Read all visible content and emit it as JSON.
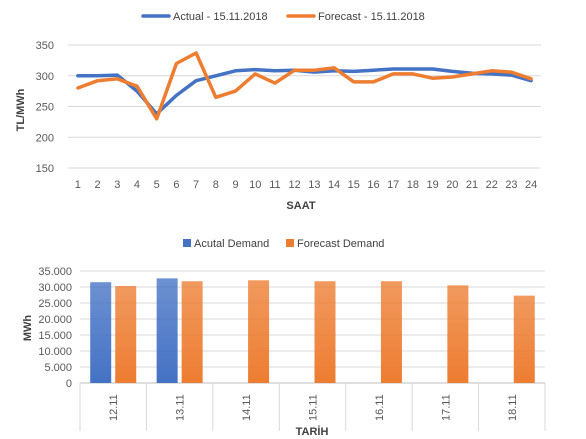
{
  "chart_data": [
    {
      "type": "line",
      "xlabel": "SAAT",
      "ylabel": "TL/MWh",
      "ylim": [
        150,
        350
      ],
      "yticks": [
        150,
        200,
        250,
        300,
        350
      ],
      "grid": true,
      "legend": "top-center",
      "categories": [
        "1",
        "2",
        "3",
        "4",
        "5",
        "6",
        "7",
        "8",
        "9",
        "10",
        "11",
        "12",
        "13",
        "14",
        "15",
        "16",
        "17",
        "18",
        "19",
        "20",
        "21",
        "22",
        "23",
        "24"
      ],
      "series": [
        {
          "name": "Actual - 15.11.2018",
          "color": "#4472C4",
          "values": [
            300,
            300,
            301,
            275,
            238,
            268,
            292,
            300,
            308,
            310,
            308,
            309,
            306,
            308,
            307,
            309,
            311,
            311,
            311,
            307,
            304,
            303,
            301,
            292
          ]
        },
        {
          "name": "Forecast - 15.11.2018",
          "color": "#ED7D31",
          "values": [
            280,
            292,
            295,
            283,
            230,
            320,
            337,
            265,
            275,
            303,
            288,
            309,
            309,
            313,
            290,
            290,
            303,
            303,
            296,
            298,
            303,
            308,
            306,
            295
          ]
        }
      ]
    },
    {
      "type": "bar",
      "xlabel": "TARİH",
      "ylabel": "MWh",
      "ylim": [
        0,
        35000
      ],
      "yticks": [
        "0",
        "5.000",
        "10.000",
        "15.000",
        "20.000",
        "25.000",
        "30.000",
        "35.000"
      ],
      "grid": true,
      "legend": "top-center",
      "categories": [
        "12.11",
        "13.11",
        "14.11",
        "15.11",
        "16.11",
        "17.11",
        "18.11"
      ],
      "series": [
        {
          "name": "Acutal Demand",
          "color": "#4472C4",
          "values": [
            31500,
            32700,
            null,
            null,
            null,
            null,
            null
          ]
        },
        {
          "name": "Forecast Demand",
          "color": "#ED7D31",
          "values": [
            30300,
            31800,
            32100,
            31800,
            31800,
            30500,
            27300
          ]
        }
      ]
    }
  ]
}
